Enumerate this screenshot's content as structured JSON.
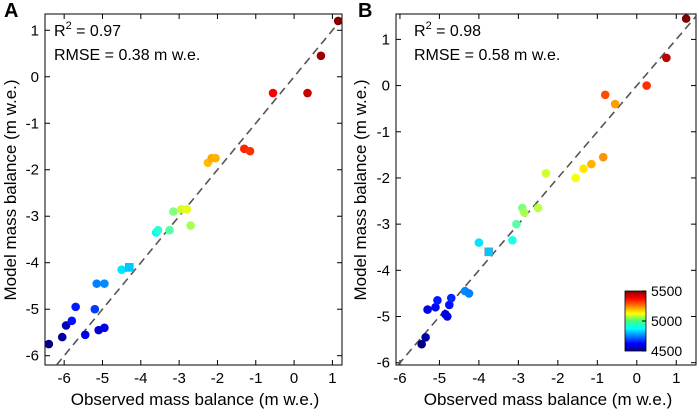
{
  "chart_data": [
    {
      "type": "scatter",
      "panel": "A",
      "xlabel": "Observed mass balance (m w.e.)",
      "ylabel": "Model mass balance (m w.e.)",
      "xlim": [
        -6.5,
        1.25
      ],
      "ylim": [
        -6.2,
        1.35
      ],
      "xticks": [
        -6,
        -5,
        -4,
        -3,
        -2,
        -1,
        0,
        1
      ],
      "yticks": [
        -6,
        -5,
        -4,
        -3,
        -2,
        -1,
        0,
        1
      ],
      "r2_label": "R",
      "r2_sup": "2",
      "r2_value": " = 0.97",
      "rmse_text": "RMSE = 0.38 m w.e.",
      "reference_line": "1:1 dashed",
      "points": [
        {
          "x": -6.4,
          "y": -5.75,
          "elev": 4500
        },
        {
          "x": -6.05,
          "y": -5.6,
          "elev": 4530
        },
        {
          "x": -5.95,
          "y": -5.35,
          "elev": 4560
        },
        {
          "x": -5.8,
          "y": -5.25,
          "elev": 4640
        },
        {
          "x": -5.7,
          "y": -4.95,
          "elev": 4650
        },
        {
          "x": -5.45,
          "y": -5.55,
          "elev": 4600
        },
        {
          "x": -5.2,
          "y": -5.0,
          "elev": 4680
        },
        {
          "x": -5.1,
          "y": -5.45,
          "elev": 4580
        },
        {
          "x": -4.95,
          "y": -5.4,
          "elev": 4600
        },
        {
          "x": -5.15,
          "y": -4.45,
          "elev": 4750
        },
        {
          "x": -4.95,
          "y": -4.45,
          "elev": 4760
        },
        {
          "x": -4.5,
          "y": -4.15,
          "elev": 4850
        },
        {
          "x": -4.3,
          "y": -4.1,
          "elev": 4820,
          "shape": "square"
        },
        {
          "x": -3.6,
          "y": -3.35,
          "elev": 4870
        },
        {
          "x": -3.55,
          "y": -3.3,
          "elev": 4920
        },
        {
          "x": -3.25,
          "y": -3.3,
          "elev": 4960
        },
        {
          "x": -3.15,
          "y": -2.9,
          "elev": 5000
        },
        {
          "x": -2.95,
          "y": -2.85,
          "elev": 5080
        },
        {
          "x": -2.8,
          "y": -2.85,
          "elev": 5100
        },
        {
          "x": -2.7,
          "y": -3.2,
          "elev": 5040
        },
        {
          "x": -2.25,
          "y": -1.85,
          "elev": 5190
        },
        {
          "x": -2.15,
          "y": -1.75,
          "elev": 5210
        },
        {
          "x": -2.05,
          "y": -1.75,
          "elev": 5200
        },
        {
          "x": -1.3,
          "y": -1.55,
          "elev": 5340
        },
        {
          "x": -1.15,
          "y": -1.6,
          "elev": 5330
        },
        {
          "x": -0.55,
          "y": -0.35,
          "elev": 5380
        },
        {
          "x": 0.35,
          "y": -0.35,
          "elev": 5430
        },
        {
          "x": 0.7,
          "y": 0.45,
          "elev": 5470
        },
        {
          "x": 1.15,
          "y": 1.2,
          "elev": 5500
        }
      ]
    },
    {
      "type": "scatter",
      "panel": "B",
      "xlabel": "Observed mass balance (m w.e.)",
      "ylabel": "Model mass balance (m w.e.)",
      "xlim": [
        -6.1,
        1.5
      ],
      "ylim": [
        -6.05,
        1.55
      ],
      "xticks": [
        -6,
        -5,
        -4,
        -3,
        -2,
        -1,
        0,
        1
      ],
      "yticks": [
        -6,
        -5,
        -4,
        -3,
        -2,
        -1,
        0,
        1
      ],
      "r2_label": "R",
      "r2_sup": "2",
      "r2_value": " = 0.98",
      "rmse_text": "RMSE = 0.58 m w.e.",
      "reference_line": "1:1 dashed",
      "points": [
        {
          "x": -5.45,
          "y": -5.6,
          "elev": 4500
        },
        {
          "x": -5.35,
          "y": -5.45,
          "elev": 4540
        },
        {
          "x": -5.3,
          "y": -4.85,
          "elev": 4600
        },
        {
          "x": -5.1,
          "y": -4.8,
          "elev": 4630
        },
        {
          "x": -5.05,
          "y": -4.65,
          "elev": 4650
        },
        {
          "x": -4.85,
          "y": -4.95,
          "elev": 4580
        },
        {
          "x": -4.8,
          "y": -5.0,
          "elev": 4600
        },
        {
          "x": -4.75,
          "y": -4.75,
          "elev": 4640
        },
        {
          "x": -4.7,
          "y": -4.6,
          "elev": 4660
        },
        {
          "x": -4.35,
          "y": -4.45,
          "elev": 4760
        },
        {
          "x": -4.25,
          "y": -4.5,
          "elev": 4750
        },
        {
          "x": -4.0,
          "y": -3.4,
          "elev": 4850
        },
        {
          "x": -3.75,
          "y": -3.6,
          "elev": 4820,
          "shape": "square"
        },
        {
          "x": -3.15,
          "y": -3.35,
          "elev": 4900
        },
        {
          "x": -3.05,
          "y": -3.0,
          "elev": 4960
        },
        {
          "x": -2.9,
          "y": -2.65,
          "elev": 5000
        },
        {
          "x": -2.85,
          "y": -2.75,
          "elev": 5040
        },
        {
          "x": -2.5,
          "y": -2.65,
          "elev": 5060
        },
        {
          "x": -2.3,
          "y": -1.9,
          "elev": 5080
        },
        {
          "x": -1.55,
          "y": -2.0,
          "elev": 5120
        },
        {
          "x": -1.35,
          "y": -1.8,
          "elev": 5150
        },
        {
          "x": -1.15,
          "y": -1.7,
          "elev": 5200
        },
        {
          "x": -0.85,
          "y": -1.55,
          "elev": 5230
        },
        {
          "x": -0.8,
          "y": -0.2,
          "elev": 5300
        },
        {
          "x": -0.55,
          "y": -0.4,
          "elev": 5220
        },
        {
          "x": 0.25,
          "y": 0.0,
          "elev": 5330
        },
        {
          "x": 0.75,
          "y": 0.6,
          "elev": 5440
        },
        {
          "x": 1.25,
          "y": 1.45,
          "elev": 5500
        }
      ],
      "colorbar": {
        "min": 4500,
        "max": 5500,
        "ticks": [
          4500,
          5000,
          5500
        ],
        "tick_labels": [
          "4500",
          "5000",
          "5500"
        ],
        "location": "bottom-right",
        "colormap": "jet"
      }
    }
  ],
  "colors": {
    "axis": "#000000",
    "reference_line": "#555555",
    "background": "#ffffff"
  }
}
